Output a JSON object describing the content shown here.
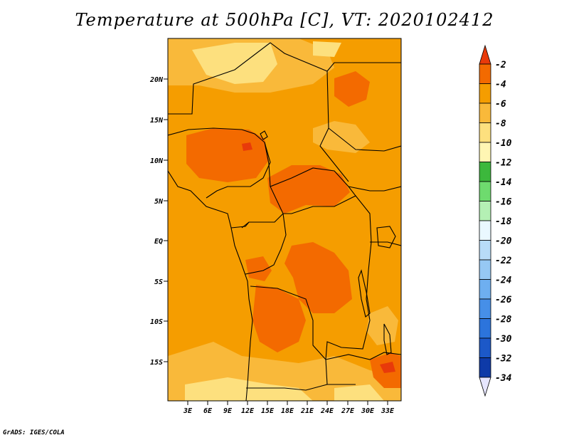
{
  "title": "Temperature at 500hPa [C], VT: 2020102412",
  "credit": "GrADS: IGES/COLA",
  "lat_labels": [
    "20N",
    "15N",
    "10N",
    "5N",
    "EQ",
    "5S",
    "10S",
    "15S"
  ],
  "lon_labels": [
    "3E",
    "6E",
    "9E",
    "12E",
    "15E",
    "18E",
    "21E",
    "24E",
    "27E",
    "30E",
    "33E"
  ],
  "colorbar": {
    "labels": [
      "-2",
      "-4",
      "-6",
      "-8",
      "-10",
      "-12",
      "-14",
      "-16",
      "-18",
      "-20",
      "-22",
      "-24",
      "-26",
      "-28",
      "-30",
      "-32",
      "-34"
    ],
    "colors": [
      "#e83a0a",
      "#f36a00",
      "#f59d00",
      "#f9b93a",
      "#fde07e",
      "#fff6b3",
      "#3cb83c",
      "#6edb6e",
      "#b4f0b4",
      "#eaf8ff",
      "#b8dcf8",
      "#96c8f4",
      "#6eaff0",
      "#468fe8",
      "#2c74dc",
      "#1c58c8",
      "#0e3aa8",
      "#0a1a6e",
      "#e6e6ff"
    ]
  },
  "field_colors": {
    "base": "#f59d00",
    "warm": "#f36a00",
    "hot": "#e83a0a",
    "mild": "#f9b93a",
    "cool": "#fde07e"
  }
}
